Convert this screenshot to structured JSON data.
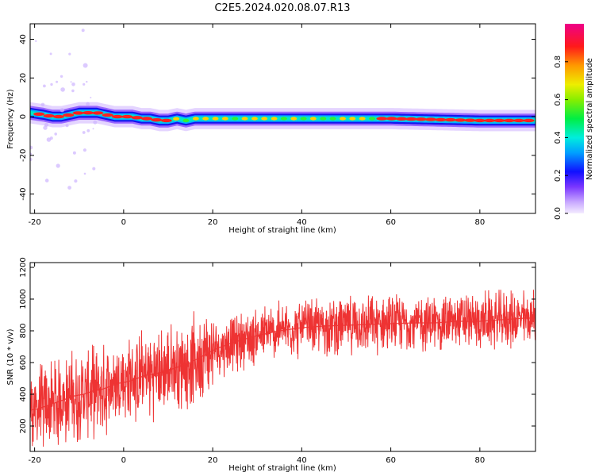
{
  "title": "C2E5.2024.020.08.07.R13",
  "chart_data": [
    {
      "type": "heatmap",
      "xlabel": "Height of straight line (km)",
      "ylabel": "Frequency (Hz)",
      "xlim": [
        -21,
        92.5
      ],
      "ylim": [
        -50,
        48
      ],
      "xticks": [
        -20,
        0,
        20,
        40,
        60,
        80
      ],
      "yticks": [
        -40,
        -20,
        0,
        20,
        40
      ],
      "colorbar": {
        "label": "Normalized spectral amplitude",
        "range": [
          0,
          1
        ],
        "ticks": [
          0.0,
          0.2,
          0.4,
          0.6,
          0.8
        ]
      },
      "ridge": {
        "x": [
          -21,
          -18,
          -16,
          -14,
          -12,
          -10,
          -8,
          -6,
          -4,
          -2,
          0,
          2,
          4,
          6,
          8,
          10,
          12,
          14,
          16,
          18,
          20,
          30,
          40,
          50,
          60,
          70,
          80,
          92
        ],
        "y": [
          2,
          1,
          0,
          0,
          1,
          2,
          2,
          2,
          1,
          0,
          0,
          0,
          -1,
          -1,
          -2,
          -2,
          -1,
          -2,
          -1,
          -1,
          -1,
          -1,
          -1,
          -1,
          -1,
          -1.5,
          -2,
          -2
        ]
      },
      "grid": false
    },
    {
      "type": "line",
      "xlabel": "Height of straight line (km)",
      "ylabel": "SNR (10 * v/v)",
      "xlim": [
        -21,
        92.5
      ],
      "ylim": [
        40,
        1230
      ],
      "xticks": [
        -20,
        0,
        20,
        40,
        60,
        80
      ],
      "yticks": [
        200,
        400,
        600,
        800,
        1000,
        1200
      ],
      "series": [
        {
          "color": "#ee3333",
          "x": [
            -21,
            -19,
            -17,
            -15,
            -13,
            -11,
            -9,
            -7,
            -5,
            -3,
            -1,
            1,
            3,
            5,
            7,
            9,
            11,
            13,
            15,
            17,
            19,
            21,
            25,
            30,
            35,
            40,
            45,
            50,
            55,
            60,
            65,
            70,
            75,
            80,
            85,
            90,
            92
          ],
          "values": [
            300,
            310,
            330,
            350,
            370,
            390,
            400,
            420,
            430,
            450,
            470,
            480,
            500,
            520,
            530,
            540,
            560,
            580,
            600,
            630,
            660,
            690,
            730,
            770,
            800,
            820,
            830,
            835,
            840,
            845,
            850,
            850,
            860,
            860,
            870,
            880,
            880
          ]
        }
      ],
      "grid": false
    }
  ],
  "colors": {
    "snr_line": "#ee3333",
    "axis": "#000000",
    "background": "#ffffff"
  }
}
